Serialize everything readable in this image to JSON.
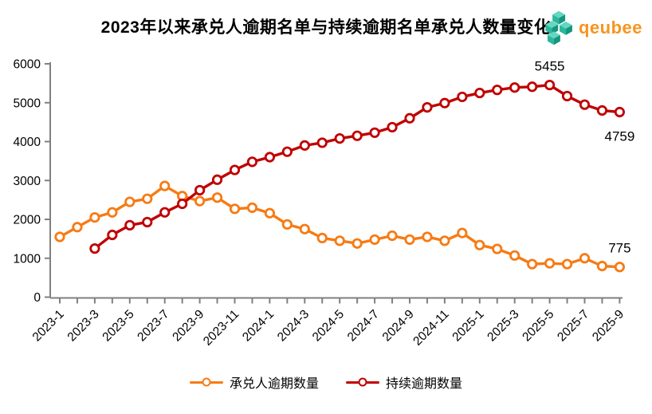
{
  "header": {
    "title": "2023年以来承兑人逾期名单与持续逾期名单承兑人数量变化",
    "logo": {
      "text": "qeubee",
      "text_color": "#F7941D",
      "mark_colors": [
        "#63D7C0",
        "#2BB79B",
        "#149680"
      ]
    }
  },
  "chart_data": {
    "type": "line",
    "title": "2023年以来承兑人逾期名单与持续逾期名单承兑人数量变化",
    "xlabel": "",
    "ylabel": "",
    "ylim": [
      0,
      6000
    ],
    "y_ticks": [
      0,
      1000,
      2000,
      3000,
      4000,
      5000,
      6000
    ],
    "grid": false,
    "legend_position": "bottom",
    "axis_color": "#808080",
    "label_color": "#000000",
    "categories": [
      "2023-1",
      "2023-2",
      "2023-3",
      "2023-4",
      "2023-5",
      "2023-6",
      "2023-7",
      "2023-8",
      "2023-9",
      "2023-10",
      "2023-11",
      "2023-12",
      "2024-1",
      "2024-2",
      "2024-3",
      "2024-4",
      "2024-5",
      "2024-6",
      "2024-7",
      "2024-8",
      "2024-9",
      "2024-10",
      "2024-11",
      "2024-12",
      "2025-1",
      "2025-2",
      "2025-3",
      "2025-4",
      "2025-5",
      "2025-6",
      "2025-7",
      "2025-8",
      "2025-9"
    ],
    "x_tick_labels": [
      "2023-1",
      "2023-3",
      "2023-5",
      "2023-7",
      "2023-9",
      "2023-11",
      "2024-1",
      "2024-3",
      "2024-5",
      "2024-7",
      "2024-9",
      "2024-11",
      "2025-1",
      "2025-3",
      "2025-5",
      "2025-7",
      "2025-9"
    ],
    "series": [
      {
        "name": "承兑人逾期数量",
        "color": "#F67B14",
        "marker": "open-circle",
        "start_index": 0,
        "values": [
          1550,
          1800,
          2050,
          2180,
          2450,
          2530,
          2860,
          2600,
          2470,
          2560,
          2270,
          2300,
          2160,
          1870,
          1750,
          1520,
          1450,
          1380,
          1480,
          1580,
          1480,
          1550,
          1450,
          1650,
          1340,
          1240,
          1070,
          850,
          870,
          850,
          1000,
          800,
          775
        ]
      },
      {
        "name": "持续逾期数量",
        "color": "#C00000",
        "marker": "open-circle",
        "start_index": 2,
        "values": [
          1250,
          1600,
          1850,
          1930,
          2180,
          2400,
          2750,
          3020,
          3270,
          3480,
          3600,
          3740,
          3900,
          3970,
          4080,
          4150,
          4230,
          4370,
          4600,
          4880,
          4990,
          5150,
          5250,
          5330,
          5390,
          5410,
          5455,
          5170,
          4950,
          4800,
          4759
        ]
      }
    ],
    "annotations": [
      {
        "text": "5455",
        "series": 1,
        "category": "2025-5",
        "placement": "above"
      },
      {
        "text": "4759",
        "series": 1,
        "category": "2025-9",
        "placement": "below"
      },
      {
        "text": "775",
        "series": 0,
        "category": "2025-9",
        "placement": "above"
      }
    ]
  }
}
